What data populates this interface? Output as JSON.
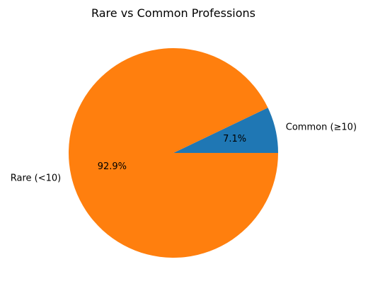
{
  "chart_data": {
    "type": "pie",
    "title": "Rare vs Common Professions",
    "slices": [
      {
        "label": "Common (≥10)",
        "value": 7.1,
        "pct_label": "7.1%",
        "color": "#1f77b4"
      },
      {
        "label": "Rare (<10)",
        "value": 92.9,
        "pct_label": "92.9%",
        "color": "#ff7f0e"
      }
    ]
  }
}
